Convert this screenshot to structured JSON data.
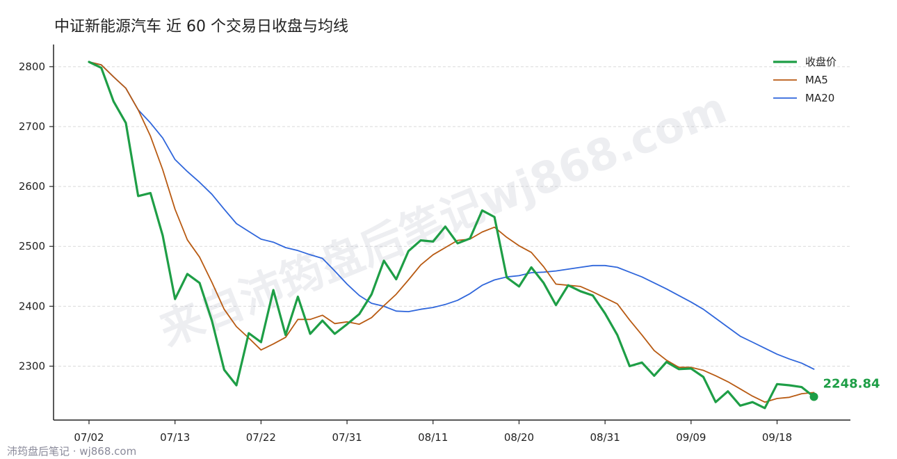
{
  "chart_data": {
    "type": "line",
    "title": "中证新能源汽车 近 60 个交易日收盘与均线",
    "xlabel": "",
    "ylabel": "",
    "ylim": [
      2210,
      2837
    ],
    "yticks": [
      2300,
      2400,
      2500,
      2600,
      2700,
      2800
    ],
    "xtick_labels": [
      "07/02",
      "07/13",
      "07/22",
      "07/31",
      "08/11",
      "08/20",
      "08/31",
      "09/09",
      "09/18"
    ],
    "xtick_index": [
      0,
      7,
      14,
      21,
      28,
      35,
      42,
      49,
      56
    ],
    "grid": "horizontal",
    "legend_position": "top-right",
    "colors": {
      "close": "#1e9e46",
      "ma5": "#b85a12",
      "ma20": "#2f66db"
    },
    "series": [
      {
        "name": "收盘价",
        "key": "close",
        "values": [
          2808,
          2798,
          2742,
          2706,
          2584,
          2589,
          2518,
          2412,
          2454,
          2439,
          2376,
          2294,
          2268,
          2355,
          2340,
          2427,
          2352,
          2416,
          2354,
          2376,
          2354,
          2370,
          2387,
          2420,
          2476,
          2445,
          2492,
          2510,
          2508,
          2533,
          2505,
          2513,
          2560,
          2549,
          2448,
          2433,
          2465,
          2439,
          2402,
          2435,
          2425,
          2418,
          2388,
          2352,
          2300,
          2306,
          2284,
          2307,
          2295,
          2296,
          2282,
          2240,
          2258,
          2234,
          2240,
          2230,
          2270,
          2268,
          2265,
          2248.84
        ]
      },
      {
        "name": "MA5",
        "key": "ma5",
        "values": [
          2808,
          2803,
          2783,
          2764,
          2728,
          2684,
          2628,
          2562,
          2511,
          2482,
          2440,
          2395,
          2366,
          2347,
          2327,
          2337,
          2348,
          2378,
          2378,
          2385,
          2371,
          2374,
          2370,
          2381,
          2401,
          2420,
          2444,
          2469,
          2486,
          2498,
          2510,
          2512,
          2524,
          2532,
          2515,
          2501,
          2490,
          2466,
          2437,
          2435,
          2433,
          2424,
          2414,
          2404,
          2377,
          2352,
          2326,
          2310,
          2298,
          2298,
          2293,
          2284,
          2274,
          2262,
          2250,
          2240,
          2246,
          2248,
          2254,
          2256
        ]
      },
      {
        "name": "MA20",
        "key": "ma20",
        "values": [
          2808,
          2803,
          2783,
          2764,
          2728,
          2706,
          2681,
          2645,
          2625,
          2607,
          2587,
          2562,
          2538,
          2525,
          2512,
          2507,
          2498,
          2493,
          2486,
          2480,
          2459,
          2437,
          2418,
          2405,
          2400,
          2392,
          2391,
          2395,
          2398,
          2403,
          2410,
          2421,
          2435,
          2444,
          2449,
          2451,
          2456,
          2457,
          2459,
          2462,
          2465,
          2468,
          2468,
          2465,
          2457,
          2449,
          2439,
          2429,
          2418,
          2407,
          2395,
          2380,
          2365,
          2350,
          2340,
          2330,
          2320,
          2312,
          2305,
          2295
        ]
      }
    ],
    "last_value_label": "2248.84"
  },
  "watermark": "来自沛筠盘后笔记wj868.com",
  "footer": "沛筠盘后笔记 · wj868.com"
}
